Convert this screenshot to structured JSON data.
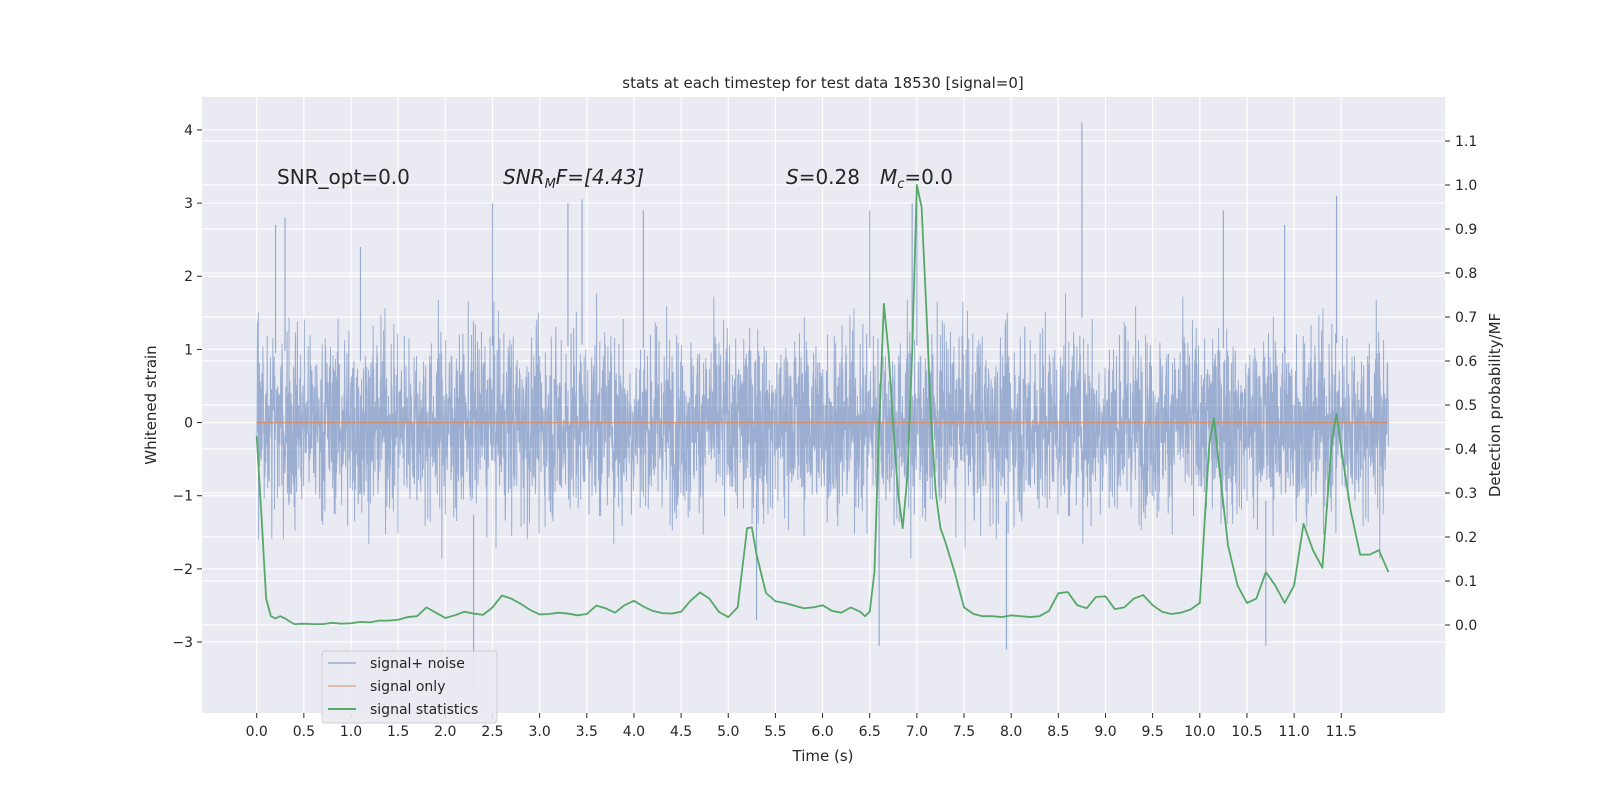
{
  "chart_data": {
    "type": "line",
    "title": "stats at each timestep for test data 18530 [signal=0]",
    "xlabel": "Time (s)",
    "ylabel": "Whitened strain",
    "y2label": "Detection probability/MF",
    "xlim": [
      -0.58,
      12.6
    ],
    "ylim": [
      -3.97,
      4.45
    ],
    "y2lim": [
      -0.2,
      1.2
    ],
    "xticks": [
      0.0,
      0.5,
      1.0,
      1.5,
      2.0,
      2.5,
      3.0,
      3.5,
      4.0,
      4.5,
      5.0,
      5.5,
      6.0,
      6.5,
      7.0,
      7.5,
      8.0,
      8.5,
      9.0,
      9.5,
      10.0,
      10.5,
      11.0,
      11.5
    ],
    "xtick_labels": [
      "0.0",
      "0.5",
      "1.0",
      "1.5",
      "2.0",
      "2.5",
      "3.0",
      "3.5",
      "4.0",
      "4.5",
      "5.0",
      "5.5",
      "6.0",
      "6.5",
      "7.0",
      "7.5",
      "8.0",
      "8.5",
      "9.0",
      "9.5",
      "10.0",
      "10.5",
      "11.0",
      "11.5"
    ],
    "yticks": [
      -3,
      -2,
      -1,
      0,
      1,
      2,
      3,
      4
    ],
    "ytick_labels": [
      "−3",
      "−2",
      "−1",
      "0",
      "1",
      "2",
      "3",
      "4"
    ],
    "y2ticks": [
      0.0,
      0.1,
      0.2,
      0.3,
      0.4,
      0.5,
      0.6,
      0.7,
      0.8,
      0.9,
      1.0,
      1.1
    ],
    "y2tick_labels": [
      "0.0",
      "0.1",
      "0.2",
      "0.3",
      "0.4",
      "0.5",
      "0.6",
      "0.7",
      "0.8",
      "0.9",
      "1.0",
      "1.1"
    ],
    "grid": true,
    "legend_position": "lower-left",
    "annotations": {
      "snr_opt": "SNR_opt=0.0",
      "snr_mf_main": "SNR",
      "snr_mf_sub": "M",
      "snr_mf_rest": "F=[4.43]",
      "s_main": "S",
      "s_rest": "=0.28",
      "mc_main": "M",
      "mc_sub": "c",
      "mc_rest": "=0.0"
    },
    "series": [
      {
        "name": "signal+ noise",
        "color": "#4c72b0",
        "opacity": 0.5,
        "x_range": [
          0.0,
          12.0
        ],
        "band_typical": [
          -1.6,
          1.45
        ],
        "extreme_spikes": [
          {
            "x": 0.2,
            "y": 2.7
          },
          {
            "x": 0.3,
            "y": 2.8
          },
          {
            "x": 1.1,
            "y": 2.4
          },
          {
            "x": 2.3,
            "y": -3.6
          },
          {
            "x": 2.5,
            "y": 3.0
          },
          {
            "x": 3.3,
            "y": 3.0
          },
          {
            "x": 3.45,
            "y": 3.05
          },
          {
            "x": 4.1,
            "y": 2.9
          },
          {
            "x": 5.3,
            "y": -2.7
          },
          {
            "x": 6.5,
            "y": 2.9
          },
          {
            "x": 6.6,
            "y": -3.05
          },
          {
            "x": 6.95,
            "y": 3.0
          },
          {
            "x": 7.0,
            "y": 3.0
          },
          {
            "x": 7.95,
            "y": -3.1
          },
          {
            "x": 8.75,
            "y": 4.1
          },
          {
            "x": 10.7,
            "y": -3.05
          },
          {
            "x": 11.45,
            "y": 3.1
          },
          {
            "x": 10.25,
            "y": 2.9
          },
          {
            "x": 10.9,
            "y": 2.7
          }
        ]
      },
      {
        "name": "signal only",
        "color": "#dd8452",
        "x": [
          0.0,
          12.0
        ],
        "y": [
          0.0,
          0.0
        ]
      },
      {
        "name": "signal statistics",
        "color": "#55a868",
        "axis": "right",
        "x": [
          0.0,
          0.05,
          0.1,
          0.15,
          0.2,
          0.25,
          0.3,
          0.35,
          0.4,
          0.5,
          0.6,
          0.7,
          0.8,
          0.9,
          1.0,
          1.1,
          1.2,
          1.3,
          1.4,
          1.5,
          1.6,
          1.7,
          1.8,
          1.9,
          2.0,
          2.1,
          2.2,
          2.3,
          2.4,
          2.5,
          2.6,
          2.7,
          2.8,
          2.9,
          3.0,
          3.1,
          3.2,
          3.3,
          3.4,
          3.5,
          3.6,
          3.7,
          3.8,
          3.9,
          4.0,
          4.1,
          4.2,
          4.3,
          4.4,
          4.5,
          4.6,
          4.7,
          4.8,
          4.9,
          5.0,
          5.1,
          5.2,
          5.25,
          5.3,
          5.4,
          5.5,
          5.6,
          5.7,
          5.8,
          5.9,
          6.0,
          6.1,
          6.2,
          6.3,
          6.4,
          6.45,
          6.5,
          6.55,
          6.6,
          6.65,
          6.7,
          6.75,
          6.8,
          6.85,
          6.9,
          6.95,
          7.0,
          7.05,
          7.1,
          7.15,
          7.2,
          7.25,
          7.3,
          7.4,
          7.5,
          7.6,
          7.7,
          7.8,
          7.9,
          8.0,
          8.1,
          8.2,
          8.3,
          8.4,
          8.5,
          8.6,
          8.7,
          8.8,
          8.9,
          9.0,
          9.1,
          9.2,
          9.3,
          9.4,
          9.5,
          9.6,
          9.7,
          9.8,
          9.9,
          10.0,
          10.05,
          10.1,
          10.15,
          10.2,
          10.3,
          10.4,
          10.5,
          10.6,
          10.7,
          10.8,
          10.9,
          11.0,
          11.1,
          11.2,
          11.3,
          11.4,
          11.45,
          11.5,
          11.6,
          11.7,
          11.8,
          11.9,
          12.0
        ],
        "y": [
          0.43,
          0.25,
          0.06,
          0.02,
          0.015,
          0.02,
          0.015,
          0.008,
          0.002,
          0.003,
          0.002,
          0.002,
          0.005,
          0.003,
          0.004,
          0.007,
          0.006,
          0.01,
          0.01,
          0.012,
          0.018,
          0.02,
          0.04,
          0.028,
          0.016,
          0.022,
          0.03,
          0.026,
          0.023,
          0.04,
          0.067,
          0.06,
          0.048,
          0.034,
          0.024,
          0.025,
          0.028,
          0.026,
          0.022,
          0.025,
          0.044,
          0.038,
          0.028,
          0.045,
          0.055,
          0.042,
          0.032,
          0.027,
          0.026,
          0.03,
          0.055,
          0.074,
          0.06,
          0.03,
          0.018,
          0.04,
          0.22,
          0.222,
          0.16,
          0.073,
          0.054,
          0.05,
          0.044,
          0.038,
          0.04,
          0.045,
          0.032,
          0.028,
          0.04,
          0.03,
          0.02,
          0.03,
          0.12,
          0.45,
          0.73,
          0.62,
          0.45,
          0.3,
          0.22,
          0.34,
          0.62,
          1.0,
          0.95,
          0.72,
          0.47,
          0.3,
          0.22,
          0.19,
          0.12,
          0.04,
          0.025,
          0.02,
          0.02,
          0.018,
          0.022,
          0.02,
          0.018,
          0.02,
          0.032,
          0.072,
          0.075,
          0.045,
          0.038,
          0.064,
          0.065,
          0.036,
          0.04,
          0.06,
          0.068,
          0.045,
          0.03,
          0.025,
          0.028,
          0.035,
          0.05,
          0.23,
          0.41,
          0.47,
          0.37,
          0.18,
          0.09,
          0.05,
          0.06,
          0.12,
          0.09,
          0.05,
          0.09,
          0.23,
          0.17,
          0.13,
          0.42,
          0.48,
          0.4,
          0.26,
          0.16,
          0.16,
          0.17,
          0.12
        ]
      }
    ]
  }
}
